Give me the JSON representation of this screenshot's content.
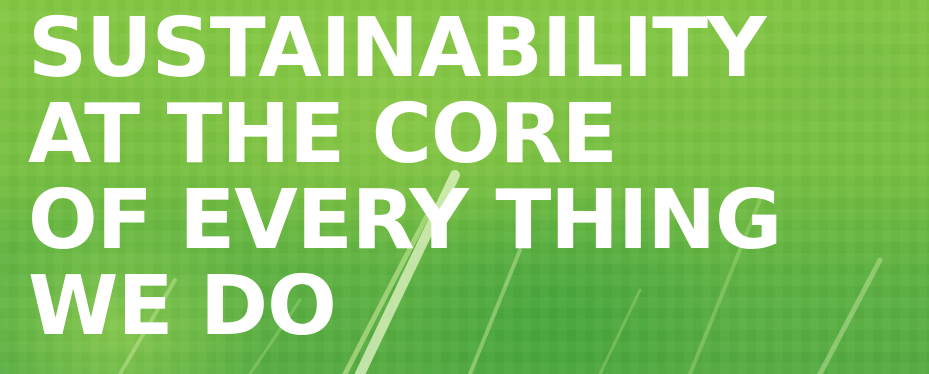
{
  "banner": {
    "headline_lines": [
      "SUSTAINABILITY",
      "AT THE CORE",
      "OF EVERY THING",
      "WE DO"
    ],
    "colors": {
      "background": "#7cc242",
      "text": "#ffffff"
    }
  }
}
